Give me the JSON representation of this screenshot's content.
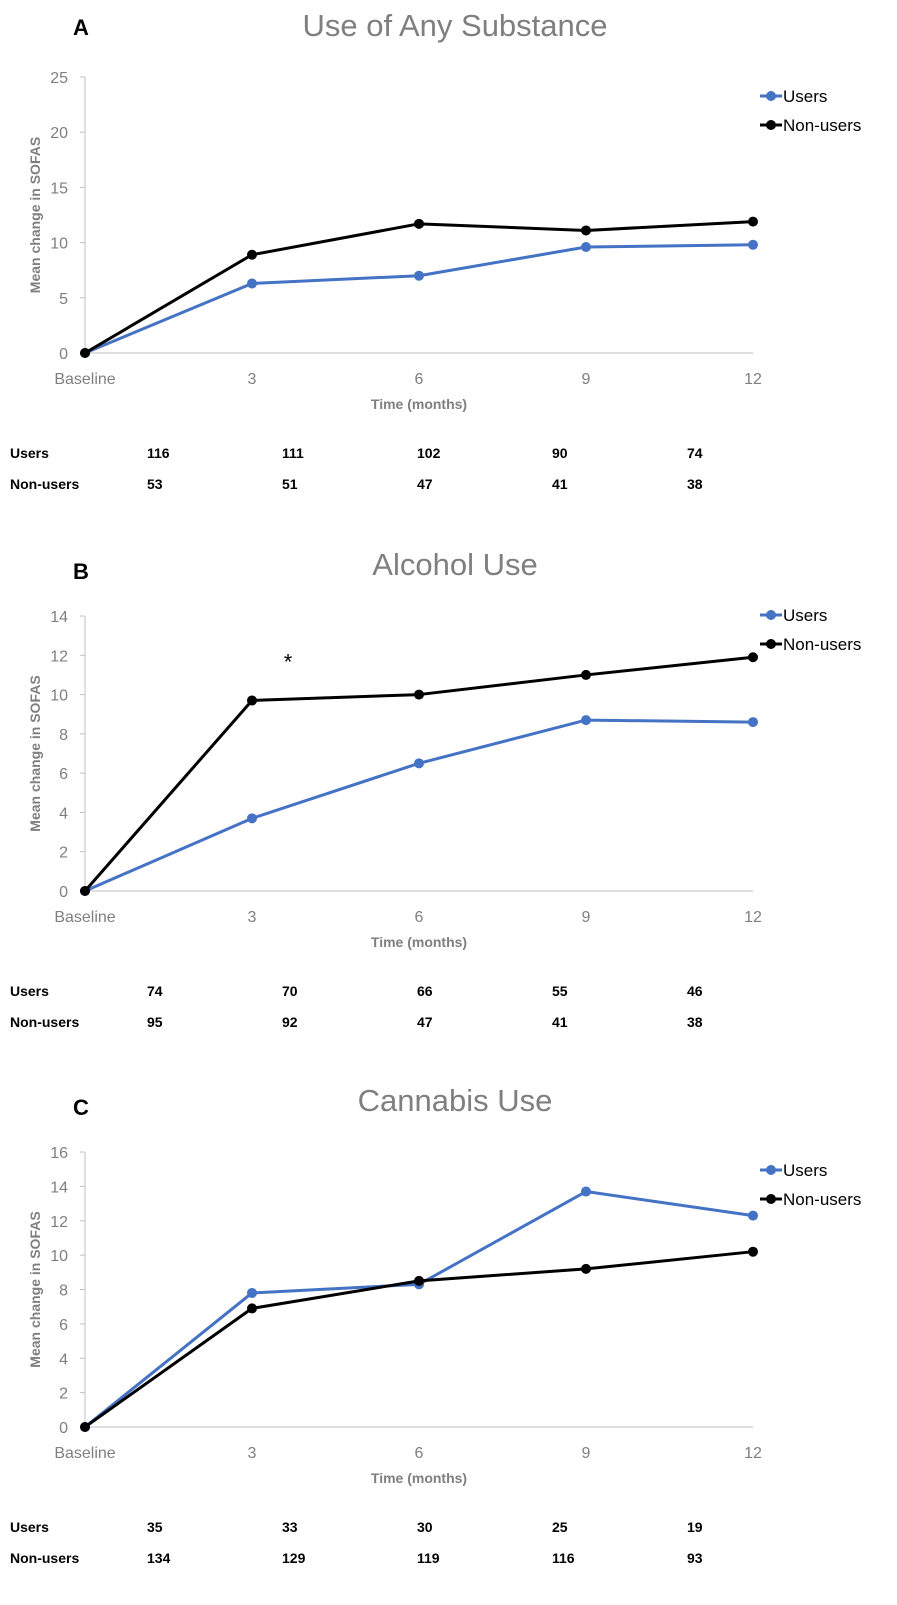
{
  "colors": {
    "users": "#4472C4",
    "non_users": "#000000",
    "axis": "#bfbfbf",
    "text_muted": "#7f7f7f"
  },
  "chart_data": [
    {
      "type": "line",
      "panel": "A",
      "title": "Use of Any Substance",
      "xlabel": "Time (months)",
      "ylabel": "Mean change in SOFAS",
      "categories": [
        "Baseline",
        "3",
        "6",
        "9",
        "12"
      ],
      "yticks": [
        "0",
        "5",
        "10",
        "15",
        "20",
        "25"
      ],
      "ylim": [
        0,
        25
      ],
      "legend_position": "top-right",
      "series": [
        {
          "name": "Users",
          "values": [
            0,
            6.3,
            7.0,
            9.6,
            9.8
          ]
        },
        {
          "name": "Non-users",
          "values": [
            0,
            8.9,
            11.7,
            11.1,
            11.9
          ]
        }
      ],
      "annotations": [],
      "counts": [
        {
          "label": "Users",
          "values": [
            "116",
            "111",
            "102",
            "90",
            "74"
          ]
        },
        {
          "label": "Non-users",
          "values": [
            "53",
            "51",
            "47",
            "41",
            "38"
          ]
        }
      ]
    },
    {
      "type": "line",
      "panel": "B",
      "title": "Alcohol Use",
      "xlabel": "Time (months)",
      "ylabel": "Mean change in SOFAS",
      "categories": [
        "Baseline",
        "3",
        "6",
        "9",
        "12"
      ],
      "yticks": [
        "0",
        "2",
        "4",
        "6",
        "8",
        "10",
        "12",
        "14"
      ],
      "ylim": [
        0,
        14
      ],
      "legend_position": "top-right",
      "series": [
        {
          "name": "Users",
          "values": [
            0,
            3.7,
            6.5,
            8.7,
            8.6
          ]
        },
        {
          "name": "Non-users",
          "values": [
            0,
            9.7,
            10.0,
            11.0,
            11.9
          ]
        }
      ],
      "annotations": [
        {
          "text": "*",
          "x_category": "3",
          "y": 12
        }
      ],
      "counts": [
        {
          "label": "Users",
          "values": [
            "74",
            "70",
            "66",
            "55",
            "46"
          ]
        },
        {
          "label": "Non-users",
          "values": [
            "95",
            "92",
            "47",
            "41",
            "38"
          ]
        }
      ]
    },
    {
      "type": "line",
      "panel": "C",
      "title": "Cannabis Use",
      "xlabel": "Time (months)",
      "ylabel": "Mean change in SOFAS",
      "categories": [
        "Baseline",
        "3",
        "6",
        "9",
        "12"
      ],
      "yticks": [
        "0",
        "2",
        "4",
        "6",
        "8",
        "10",
        "12",
        "14",
        "16"
      ],
      "ylim": [
        0,
        16
      ],
      "legend_position": "top-right",
      "series": [
        {
          "name": "Users",
          "values": [
            0,
            7.8,
            8.3,
            13.7,
            12.3
          ]
        },
        {
          "name": "Non-users",
          "values": [
            0,
            6.9,
            8.5,
            9.2,
            10.2
          ]
        }
      ],
      "annotations": [],
      "counts": [
        {
          "label": "Users",
          "values": [
            "35",
            "33",
            "30",
            "25",
            "19"
          ]
        },
        {
          "label": "Non-users",
          "values": [
            "134",
            "129",
            "119",
            "116",
            "93"
          ]
        }
      ]
    }
  ]
}
